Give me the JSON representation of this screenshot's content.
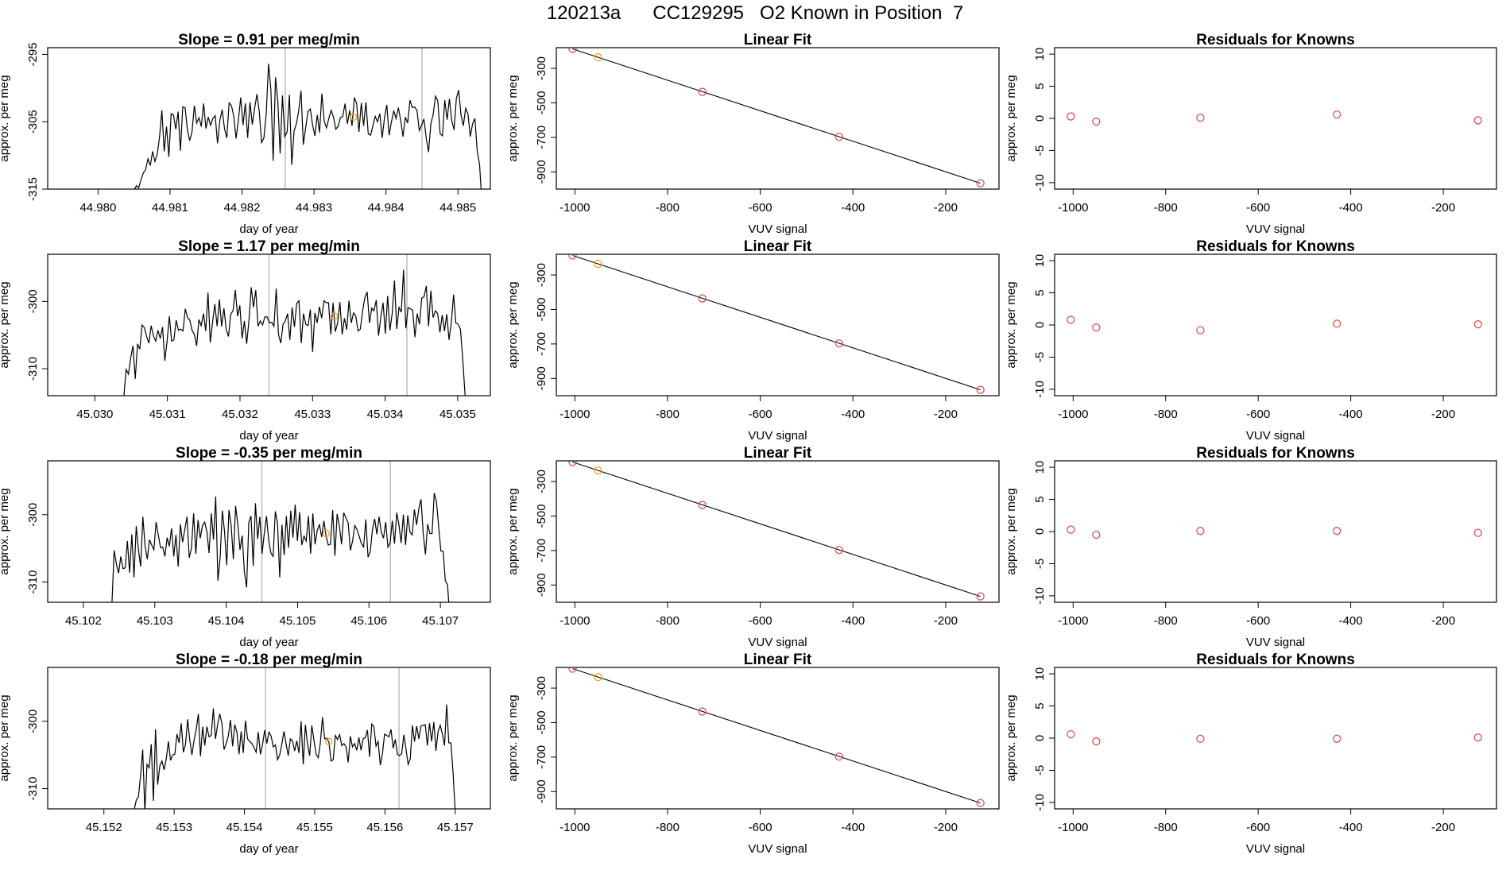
{
  "page": {
    "title": "120213a      CC129295   O2 Known in Position  7"
  },
  "chart_data": [
    {
      "type": "line",
      "title": "Slope =  0.91  per meg/min",
      "xlabel": "day of year",
      "ylabel": "approx. per meg",
      "xlim": [
        44.9793,
        44.98545
      ],
      "ylim": [
        -315,
        -294
      ],
      "xticks": [
        "44.980",
        "44.981",
        "44.982",
        "44.983",
        "44.984",
        "44.985"
      ],
      "yticks": [
        "-315",
        "-305",
        "-295"
      ],
      "vlines": [
        44.9826,
        44.9845
      ],
      "marker": {
        "x": 44.98355,
        "y": -304.3
      },
      "trace_start": 44.9805,
      "trace_end": 44.9853,
      "baseline": -306,
      "values": [
        -315.2,
        -314.5,
        -314.8,
        -313.6,
        -312.6,
        -312.1,
        -310.5,
        -311.5,
        -309.4,
        -310.9,
        -309.8,
        -307.2,
        -303.3,
        -309.4,
        -305.7,
        -310.2,
        -303.8,
        -304,
        -306.1,
        -303.5,
        -309.3,
        -302.8,
        -302.9,
        -306.2,
        -307.8,
        -306.5,
        -302.6,
        -305.2,
        -304.4,
        -305.7,
        -302.3,
        -306,
        -304.3,
        -305.5,
        -304.5,
        -304.1,
        -308.2,
        -304.8,
        -303.2,
        -306,
        -307.4,
        -302.2,
        -302.6,
        -304.2,
        -307.5,
        -304.7,
        -301.4,
        -305.5,
        -302.3,
        -307.4,
        -302.1,
        -305.4,
        -303,
        -300.9,
        -303.5,
        -308.1,
        -307.4,
        -303.8,
        -296.4,
        -300.2,
        -310.8,
        -298.4,
        -302,
        -309.7,
        -301.1,
        -307.2,
        -306.5,
        -301,
        -311.4,
        -306.4,
        -305.3,
        -303.4,
        -300.4,
        -308.4,
        -305.9,
        -303.5,
        -303.1,
        -305.5,
        -307.1,
        -304,
        -306.6,
        -300.8,
        -304.9,
        -305.9,
        -304.5,
        -303.3,
        -304.3,
        -306.1,
        -305.7,
        -304.4,
        -304.2,
        -302.3,
        -305.3,
        -303.3,
        -305.6,
        -301.4,
        -302.3,
        -306.5,
        -302.2,
        -305.6,
        -302.1,
        -306.8,
        -307,
        -305.6,
        -304.2,
        -305,
        -303.8,
        -307.4,
        -304.4,
        -302.5,
        -307,
        -305,
        -303.4,
        -304.5,
        -302.9,
        -304.8,
        -307.2,
        -304.3,
        -305.2,
        -301.8,
        -302.9,
        -302.8,
        -303.3,
        -306.3,
        -305.5,
        -304.6,
        -307.4,
        -309.5,
        -305.3,
        -303.9,
        -301.2,
        -301.9,
        -306.8,
        -307.1,
        -301.8,
        -304.7,
        -301.6,
        -304.8,
        -306.2,
        -301.5,
        -300.3,
        -304,
        -305.6,
        -303,
        -303.8,
        -307.2,
        -305.3,
        -304.5,
        -309.4,
        -311.3
      ]
    },
    {
      "type": "line",
      "title": "Linear Fit",
      "xlabel": "VUV signal",
      "ylabel": "approx. per meg",
      "xlim": [
        -1040,
        -85
      ],
      "ylim": [
        -1000,
        -180
      ],
      "xticks": [
        "-1000",
        "-800",
        "-600",
        "-400",
        "-200"
      ],
      "yticks": [
        "-300",
        "-500",
        "-700",
        "-900"
      ],
      "fit_line": {
        "x": [
          -1005,
          -125
        ],
        "y": [
          -187,
          -966
        ]
      },
      "points": [
        {
          "x": -1005,
          "y": -187,
          "color": "#e05050"
        },
        {
          "x": -950,
          "y": -236,
          "color": "#f0a020"
        },
        {
          "x": -725,
          "y": -436,
          "color": "#e05050"
        },
        {
          "x": -430,
          "y": -697,
          "color": "#e05050"
        },
        {
          "x": -125,
          "y": -966,
          "color": "#e05050"
        }
      ]
    },
    {
      "type": "scatter",
      "title": "Residuals for Knowns",
      "xlabel": "VUV signal",
      "ylabel": "approx. per meg",
      "xlim": [
        -1040,
        -85
      ],
      "ylim": [
        -11,
        11
      ],
      "xticks": [
        "-1000",
        "-800",
        "-600",
        "-400",
        "-200"
      ],
      "yticks": [
        "-10",
        "-5",
        "0",
        "5",
        "10"
      ],
      "points": [
        {
          "x": -1005,
          "y": 0.3
        },
        {
          "x": -950,
          "y": -0.5
        },
        {
          "x": -725,
          "y": 0.1
        },
        {
          "x": -430,
          "y": 0.6
        },
        {
          "x": -125,
          "y": -0.3
        }
      ]
    },
    {
      "type": "line",
      "title": "Slope =  1.17  per meg/min",
      "xlabel": "day of year",
      "ylabel": "approx. per meg",
      "xlim": [
        45.02935,
        45.03545
      ],
      "ylim": [
        -314,
        -293
      ],
      "xticks": [
        "45.030",
        "45.031",
        "45.032",
        "45.033",
        "45.034",
        "45.035"
      ],
      "yticks": [
        "-310",
        "-300"
      ],
      "vlines": [
        45.0324,
        45.0343
      ],
      "marker": {
        "x": 45.0333,
        "y": -302.2
      },
      "trace_start": 45.0304,
      "trace_end": 45.0351,
      "baseline": -304,
      "values": [
        -314.1,
        -310.1,
        -310.8,
        -308.4,
        -306.6,
        -311.5,
        -306.3,
        -307.1,
        -303.5,
        -303.9,
        -305.2,
        -306.2,
        -303.6,
        -305.1,
        -305.9,
        -304.3,
        -305.5,
        -303.8,
        -308.8,
        -305.9,
        -302.2,
        -305.9,
        -305.7,
        -302.8,
        -304.3,
        -304.1,
        -304.4,
        -301.1,
        -302.4,
        -302.8,
        -304.3,
        -304.9,
        -306.6,
        -302.7,
        -303.6,
        -301.8,
        -304.4,
        -298.7,
        -306.1,
        -303.1,
        -300.4,
        -303.7,
        -299.7,
        -303.7,
        -301,
        -304.2,
        -305.2,
        -301.9,
        -301.4,
        -298.3,
        -302.2,
        -300.6,
        -305.5,
        -302.9,
        -306.3,
        -302.9,
        -297.9,
        -300.9,
        -298.3,
        -303.7,
        -302.9,
        -303.5,
        -302.3,
        -302.3,
        -303.2,
        -303.1,
        -303.7,
        -298.1,
        -304.9,
        -306.2,
        -303.4,
        -302.9,
        -301.8,
        -305.7,
        -300.9,
        -303.8,
        -300.3,
        -299.9,
        -306.2,
        -301.8,
        -303.4,
        -303.6,
        -301.2,
        -307.5,
        -301.7,
        -303.2,
        -300.8,
        -302.5,
        -299.9,
        -300.2,
        -300.2,
        -304.9,
        -300.2,
        -304.5,
        -303.2,
        -300.1,
        -304.9,
        -302.5,
        -304.2,
        -299.9,
        -303.2,
        -301.7,
        -302.2,
        -304.4,
        -304.1,
        -301.4,
        -299.4,
        -298.6,
        -303.2,
        -301,
        -301.4,
        -299.8,
        -305.1,
        -302.3,
        -300.2,
        -304.8,
        -299.2,
        -304.3,
        -301.8,
        -296.9,
        -304.1,
        -300.9,
        -301.6,
        -295.3,
        -304,
        -300.9,
        -301.1,
        -301.3,
        -305.3,
        -301.8,
        -303.4,
        -299.5,
        -299.3,
        -297.7,
        -303.7,
        -298.4,
        -302.4,
        -301.4,
        -301.8,
        -304.6,
        -302,
        -304.4,
        -301.9,
        -305.7,
        -303.2,
        -299,
        -303.2,
        -303.4,
        -304.1,
        -308.4,
        -313.7
      ]
    },
    {
      "type": "line",
      "title": "Linear Fit",
      "xlabel": "VUV signal",
      "ylabel": "approx. per meg",
      "xlim": [
        -1040,
        -85
      ],
      "ylim": [
        -1000,
        -180
      ],
      "xticks": [
        "-1000",
        "-800",
        "-600",
        "-400",
        "-200"
      ],
      "yticks": [
        "-300",
        "-500",
        "-700",
        "-900"
      ],
      "fit_line": {
        "x": [
          -1005,
          -125
        ],
        "y": [
          -187,
          -966
        ]
      },
      "points": [
        {
          "x": -1005,
          "y": -187,
          "color": "#e05050"
        },
        {
          "x": -950,
          "y": -236,
          "color": "#f0a020"
        },
        {
          "x": -725,
          "y": -436,
          "color": "#e05050"
        },
        {
          "x": -430,
          "y": -697,
          "color": "#e05050"
        },
        {
          "x": -125,
          "y": -966,
          "color": "#e05050"
        }
      ]
    },
    {
      "type": "scatter",
      "title": "Residuals for Knowns",
      "xlabel": "VUV signal",
      "ylabel": "approx. per meg",
      "xlim": [
        -1040,
        -85
      ],
      "ylim": [
        -11,
        11
      ],
      "xticks": [
        "-1000",
        "-800",
        "-600",
        "-400",
        "-200"
      ],
      "yticks": [
        "-10",
        "-5",
        "0",
        "5",
        "10"
      ],
      "points": [
        {
          "x": -1005,
          "y": 0.8
        },
        {
          "x": -950,
          "y": -0.4
        },
        {
          "x": -725,
          "y": -0.8
        },
        {
          "x": -430,
          "y": 0.2
        },
        {
          "x": -125,
          "y": 0.1
        }
      ]
    },
    {
      "type": "line",
      "title": "Slope =  -0.35  per meg/min",
      "xlabel": "day of year",
      "ylabel": "approx. per meg",
      "xlim": [
        45.1015,
        45.1077
      ],
      "ylim": [
        -313,
        -292
      ],
      "xticks": [
        "45.102",
        "45.103",
        "45.104",
        "45.105",
        "45.106",
        "45.107"
      ],
      "yticks": [
        "-310",
        "-300"
      ],
      "vlines": [
        45.1045,
        45.1063
      ],
      "marker": {
        "x": 45.1054,
        "y": -302.8
      },
      "trace_start": 45.1024,
      "trace_end": 45.1071,
      "baseline": -304,
      "values": [
        -313.2,
        -305.3,
        -307.3,
        -308.7,
        -306.2,
        -308,
        -307.9,
        -303.9,
        -308.6,
        -302.9,
        -309.3,
        -301.7,
        -305.2,
        -307.7,
        -300.3,
        -304.6,
        -306.6,
        -303.7,
        -304.5,
        -305.2,
        -301.1,
        -303,
        -304.9,
        -304.8,
        -306.2,
        -303.4,
        -304.7,
        -302,
        -306.2,
        -303,
        -307.7,
        -301.4,
        -304.1,
        -302.2,
        -300.3,
        -306.4,
        -305,
        -299.8,
        -305.8,
        -300.8,
        -303.5,
        -301.6,
        -301.1,
        -302.5,
        -305.7,
        -299.8,
        -303.7,
        -297.3,
        -309.8,
        -306.4,
        -299.4,
        -302.5,
        -307.5,
        -299.3,
        -301.6,
        -306.6,
        -298.7,
        -301.4,
        -305.2,
        -303.1,
        -308.5,
        -310.8,
        -301.1,
        -300.2,
        -307.6,
        -298.3,
        -303.6,
        -300.3,
        -305.8,
        -302.8,
        -300.2,
        -303.8,
        -305.7,
        -306.2,
        -299.5,
        -301.2,
        -309.3,
        -301.5,
        -306,
        -300.2,
        -304.9,
        -299.4,
        -303.4,
        -298.5,
        -303.9,
        -299.6,
        -304.5,
        -303.2,
        -303.9,
        -300.2,
        -305.8,
        -299.8,
        -304.4,
        -302.3,
        -301.5,
        -303.3,
        -300.9,
        -303.2,
        -304.5,
        -304.4,
        -299.3,
        -306.1,
        -299.9,
        -301.6,
        -304.4,
        -299.7,
        -300.5,
        -301.2,
        -305.3,
        -303.9,
        -301.6,
        -302.2,
        -303.2,
        -304.3,
        -304.8,
        -300.7,
        -306.3,
        -305.5,
        -302.2,
        -300.6,
        -302.9,
        -300.3,
        -302.6,
        -303.5,
        -301.1,
        -304.8,
        -304.2,
        -300.9,
        -304.3,
        -299.7,
        -301.5,
        -304.2,
        -300,
        -304.5,
        -300.1,
        -302.6,
        -303,
        -299.2,
        -301.5,
        -299.1,
        -297.7,
        -302.8,
        -305.9,
        -301.4,
        -302.8,
        -302.8,
        -296.8,
        -298.1,
        -301.8,
        -305.4,
        -305.4,
        -309.8,
        -310.4
      ]
    },
    {
      "type": "line",
      "title": "Linear Fit",
      "xlabel": "VUV signal",
      "ylabel": "approx. per meg",
      "xlim": [
        -1040,
        -85
      ],
      "ylim": [
        -1000,
        -180
      ],
      "xticks": [
        "-1000",
        "-800",
        "-600",
        "-400",
        "-200"
      ],
      "yticks": [
        "-300",
        "-500",
        "-700",
        "-900"
      ],
      "fit_line": {
        "x": [
          -1005,
          -125
        ],
        "y": [
          -187,
          -966
        ]
      },
      "points": [
        {
          "x": -1005,
          "y": -187,
          "color": "#e05050"
        },
        {
          "x": -950,
          "y": -236,
          "color": "#f0a020"
        },
        {
          "x": -725,
          "y": -436,
          "color": "#e05050"
        },
        {
          "x": -430,
          "y": -697,
          "color": "#e05050"
        },
        {
          "x": -125,
          "y": -966,
          "color": "#e05050"
        }
      ]
    },
    {
      "type": "scatter",
      "title": "Residuals for Knowns",
      "xlabel": "VUV signal",
      "ylabel": "approx. per meg",
      "xlim": [
        -1040,
        -85
      ],
      "ylim": [
        -11,
        11
      ],
      "xticks": [
        "-1000",
        "-800",
        "-600",
        "-400",
        "-200"
      ],
      "yticks": [
        "-10",
        "-5",
        "0",
        "5",
        "10"
      ],
      "points": [
        {
          "x": -1005,
          "y": 0.3
        },
        {
          "x": -950,
          "y": -0.5
        },
        {
          "x": -725,
          "y": 0.1
        },
        {
          "x": -430,
          "y": 0.1
        },
        {
          "x": -125,
          "y": -0.2
        }
      ]
    },
    {
      "type": "line",
      "title": "Slope =  -0.18  per meg/min",
      "xlabel": "day of year",
      "ylabel": "approx. per meg",
      "xlim": [
        45.1512,
        45.1575
      ],
      "ylim": [
        -313,
        -292
      ],
      "xticks": [
        "45.152",
        "45.153",
        "45.154",
        "45.155",
        "45.156",
        "45.157"
      ],
      "yticks": [
        "-310",
        "-300"
      ],
      "vlines": [
        45.1543,
        45.1562
      ],
      "marker": {
        "x": 45.1552,
        "y": -303.0
      },
      "trace_start": 45.1524,
      "trace_end": 45.157,
      "baseline": -304,
      "values": [
        -313.3,
        -313.2,
        -311.7,
        -311.2,
        -308.1,
        -304.2,
        -313.4,
        -306.4,
        -306.9,
        -303.4,
        -311.8,
        -301.2,
        -309.4,
        -306.6,
        -305.9,
        -307.2,
        -305.6,
        -303,
        -305.8,
        -305,
        -304.9,
        -301.9,
        -303.2,
        -300.3,
        -304.6,
        -303.4,
        -299.7,
        -302.8,
        -305,
        -302.8,
        -301.2,
        -298.9,
        -305.2,
        -300.8,
        -303.6,
        -300.8,
        -302.3,
        -302.1,
        -298.1,
        -302.6,
        -300.5,
        -298.9,
        -300.3,
        -304.2,
        -303.3,
        -302.2,
        -299.8,
        -303.7,
        -300.5,
        -301.6,
        -304.9,
        -301.5,
        -304.7,
        -299.9,
        -302.6,
        -303,
        -303.3,
        -303.9,
        -304.6,
        -301.6,
        -304.9,
        -303.4,
        -301.3,
        -303.3,
        -301.6,
        -302.2,
        -303.8,
        -303.5,
        -305.7,
        -305,
        -303.4,
        -301.5,
        -303.4,
        -305.1,
        -302.6,
        -302.9,
        -304.4,
        -302.9,
        -304.7,
        -300,
        -306.4,
        -300.5,
        -303.4,
        -305.1,
        -300.6,
        -302.8,
        -304.9,
        -305.4,
        -303.2,
        -299.4,
        -302.6,
        -302.5,
        -303.1,
        -305.9,
        -305.7,
        -302.1,
        -302.7,
        -302,
        -303.6,
        -303.3,
        -303.8,
        -306.1,
        -302.2,
        -303.8,
        -303.3,
        -304.3,
        -302.4,
        -304.3,
        -302.6,
        -302.4,
        -301.3,
        -305.3,
        -300.4,
        -300.8,
        -303.7,
        -303,
        -306.5,
        -304.8,
        -301.9,
        -302.1,
        -302.3,
        -301.2,
        -304,
        -302.7,
        -304.9,
        -305.1,
        -304.8,
        -302,
        -304.1,
        -306.4,
        -305.6,
        -300.6,
        -303,
        -300.7,
        -302.6,
        -300.7,
        -300.6,
        -300.5,
        -303.6,
        -300.3,
        -303,
        -300.1,
        -304.4,
        -301.5,
        -300.6,
        -301.9,
        -303.6,
        -297.5,
        -303.2,
        -303.2,
        -307.7,
        -313.4
      ]
    },
    {
      "type": "line",
      "title": "Linear Fit",
      "xlabel": "VUV signal",
      "ylabel": "approx. per meg",
      "xlim": [
        -1040,
        -85
      ],
      "ylim": [
        -1000,
        -180
      ],
      "xticks": [
        "-1000",
        "-800",
        "-600",
        "-400",
        "-200"
      ],
      "yticks": [
        "-300",
        "-500",
        "-700",
        "-900"
      ],
      "fit_line": {
        "x": [
          -1005,
          -125
        ],
        "y": [
          -187,
          -966
        ]
      },
      "points": [
        {
          "x": -1005,
          "y": -187,
          "color": "#e05050"
        },
        {
          "x": -950,
          "y": -236,
          "color": "#f0a020"
        },
        {
          "x": -725,
          "y": -436,
          "color": "#e05050"
        },
        {
          "x": -430,
          "y": -697,
          "color": "#e05050"
        },
        {
          "x": -125,
          "y": -966,
          "color": "#e05050"
        }
      ]
    },
    {
      "type": "scatter",
      "title": "Residuals for Knowns",
      "xlabel": "VUV signal",
      "ylabel": "approx. per meg",
      "xlim": [
        -1040,
        -85
      ],
      "ylim": [
        -11,
        11
      ],
      "xticks": [
        "-1000",
        "-800",
        "-600",
        "-400",
        "-200"
      ],
      "yticks": [
        "-10",
        "-5",
        "0",
        "5",
        "10"
      ],
      "points": [
        {
          "x": -1005,
          "y": 0.6
        },
        {
          "x": -950,
          "y": -0.5
        },
        {
          "x": -725,
          "y": -0.1
        },
        {
          "x": -430,
          "y": -0.1
        },
        {
          "x": -125,
          "y": 0.1
        }
      ]
    }
  ]
}
